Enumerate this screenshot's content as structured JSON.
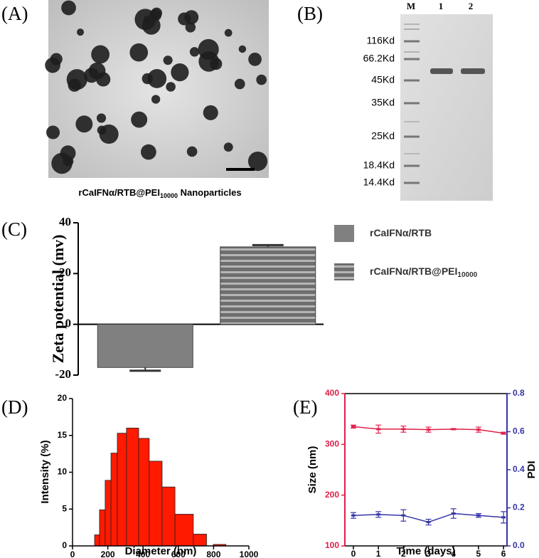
{
  "images": [
    {
      "label": "(A)",
      "caption": {
        "text": "rCaIFNα/RTB@PEI",
        "sub": "10000",
        "after": " Nanoparticles"
      }
    },
    {
      "label": "(B)",
      "lanes": [
        "M",
        "1",
        "2"
      ],
      "markers": [
        "116Kd",
        "66.2Kd",
        "45Kd",
        "35Kd",
        "25Kd",
        "18.4Kd",
        "14.4Kd"
      ]
    }
  ],
  "chart_data": [
    {
      "type": "bar",
      "panel": "(C)",
      "ylabel": "Zeta potential (mv)",
      "ylim": [
        -20,
        40
      ],
      "yticks": [
        -20,
        0,
        20,
        40
      ],
      "series": [
        {
          "name": "rCaIFNα/RTB",
          "color": "#808080",
          "values": [
            -17
          ],
          "errors": [
            1.3
          ]
        },
        {
          "name": "rCaIFNα/RTB@PEI",
          "name_sub": "10000",
          "color": "#6e6e6e",
          "pattern": "horizontal-stripes",
          "values": [
            30.5
          ],
          "errors": [
            0.7
          ]
        }
      ]
    },
    {
      "type": "histogram",
      "panel": "(D)",
      "xlabel": "Diameter (nm)",
      "ylabel": "Intensity (%)",
      "color": "#ff1a00",
      "bins": [
        125,
        153,
        185,
        218,
        254,
        306,
        375,
        435,
        508,
        581,
        685,
        760,
        798,
        870
      ],
      "values": [
        1.5,
        4.9,
        8.9,
        12.6,
        15.3,
        16,
        14.6,
        11.5,
        8,
        4.3,
        1.6,
        0,
        0.2
      ],
      "xlim": [
        0,
        1000
      ],
      "xticks": [
        0,
        200,
        400,
        600,
        800,
        1000
      ],
      "ylim": [
        0,
        20
      ],
      "yticks": [
        0,
        5,
        10,
        15,
        20
      ]
    },
    {
      "type": "line",
      "panel": "(E)",
      "xlabel": "Time (days)",
      "ylabel": "Size (nm)",
      "y2label": "PDI",
      "x": [
        0,
        1,
        2,
        3,
        4,
        5,
        6
      ],
      "xlim": [
        -0.34,
        6.14
      ],
      "xticks": [
        0,
        1,
        2,
        3,
        4,
        5,
        6
      ],
      "ylim": [
        100,
        400
      ],
      "yticks": [
        100,
        200,
        300,
        400
      ],
      "y2lim": [
        0,
        0.8
      ],
      "y2ticks": [
        {
          "value": 0,
          "label": "0.0"
        },
        0.2,
        0.4,
        0.6,
        0.8
      ],
      "series": [
        {
          "name": "Size",
          "color": "#e0204a",
          "values": [
            335,
            330,
            330,
            329,
            330,
            329,
            322
          ],
          "errors": [
            3,
            8,
            6,
            5,
            1,
            5,
            2
          ]
        },
        {
          "name": "PDI",
          "color": "#3535a8",
          "axis": "y2",
          "values": [
            0.16,
            0.165,
            0.16,
            0.125,
            0.17,
            0.16,
            0.15
          ],
          "errors": [
            0.015,
            0.015,
            0.03,
            0.015,
            0.025,
            0.01,
            0.03
          ]
        }
      ]
    }
  ]
}
